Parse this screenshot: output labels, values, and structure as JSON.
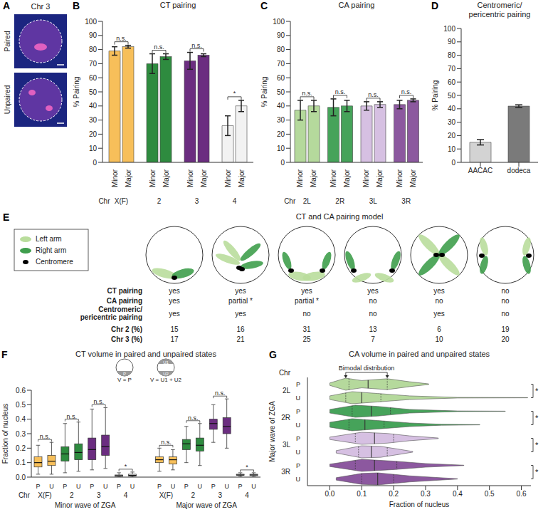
{
  "panel_A": {
    "panel": "A",
    "title": "Chr 3",
    "images": [
      "Paired",
      "Unpaired"
    ]
  },
  "panel_E": {
    "panel": "E",
    "title": "CT and CA pairing model",
    "legend": [
      {
        "label": "Left arm",
        "color": "#b9dd9c"
      },
      {
        "label": "Right arm",
        "color": "#3f9e4d"
      },
      {
        "label": "Centromere",
        "color": "#000000"
      }
    ],
    "rows": [
      {
        "label": "CT pairing",
        "values": [
          "yes",
          "yes",
          "yes",
          "yes",
          "yes",
          "no"
        ]
      },
      {
        "label": "CA pairing",
        "values": [
          "yes",
          "partial *",
          "partial *",
          "no",
          "no",
          "no"
        ]
      },
      {
        "label": "Centromeric/pericentric pairing",
        "values": [
          "yes",
          "yes",
          "no",
          "no",
          "yes",
          "no"
        ]
      },
      {
        "label": "Chr 2 (%)",
        "values": [
          15,
          16,
          31,
          13,
          6,
          19
        ]
      },
      {
        "label": "Chr 3 (%)",
        "values": [
          17,
          21,
          25,
          7,
          10,
          20
        ]
      }
    ]
  },
  "chart_data": [
    {
      "panel": "B",
      "type": "bar",
      "title": "CT pairing",
      "ylabel": "% Pairing",
      "group_label": "Chr",
      "categories": [
        "X(F)",
        "2",
        "3",
        "4"
      ],
      "series": [
        {
          "name": "Minor",
          "values": [
            79,
            70,
            72,
            26
          ],
          "errors": [
            3,
            7,
            6,
            7
          ],
          "colors": [
            "#f7bf5a",
            "#2e8b3f",
            "#6b2d80",
            "#f2f2f2"
          ]
        },
        {
          "name": "Major",
          "values": [
            82,
            75,
            76,
            40
          ],
          "errors": [
            1,
            2,
            1,
            4
          ],
          "colors": [
            "#f7bf5a",
            "#2e8b3f",
            "#6b2d80",
            "#f2f2f2"
          ]
        }
      ],
      "significance": [
        "n.s.",
        "n.s.",
        "n.s.",
        "*"
      ],
      "ylim": [
        0,
        100
      ],
      "yticks": [
        0,
        10,
        20,
        30,
        40,
        50,
        60,
        70,
        80,
        90,
        100
      ]
    },
    {
      "panel": "C",
      "type": "bar",
      "title": "CA pairing",
      "ylabel": "% Pairing",
      "group_label": "Chr",
      "categories": [
        "2L",
        "2R",
        "3L",
        "3R"
      ],
      "series": [
        {
          "name": "Minor",
          "values": [
            37,
            39,
            40,
            41
          ],
          "errors": [
            7,
            6,
            3,
            3
          ],
          "colors": [
            "#b5d99c",
            "#46a35a",
            "#d6c0e2",
            "#8c589f"
          ]
        },
        {
          "name": "Major",
          "values": [
            40,
            40,
            41,
            44
          ],
          "errors": [
            4,
            4,
            2,
            1
          ],
          "colors": [
            "#b5d99c",
            "#46a35a",
            "#d6c0e2",
            "#8c589f"
          ]
        }
      ],
      "significance": [
        "n.s.",
        "n.s.",
        "n.s.",
        "n.s."
      ],
      "ylim": [
        0,
        100
      ],
      "yticks": [
        0,
        10,
        20,
        30,
        40,
        50,
        60,
        70,
        80,
        90,
        100
      ]
    },
    {
      "panel": "D",
      "type": "bar",
      "title": "Centromeric/pericentric pairing",
      "ylabel": "% Pairing",
      "categories": [
        "AACAC",
        "dodeca"
      ],
      "values": [
        15,
        42
      ],
      "errors": [
        2,
        1
      ],
      "colors": [
        "#d3d3d3",
        "#7a7a7a"
      ],
      "ylim": [
        0,
        100
      ],
      "yticks": [
        0,
        10,
        20,
        30,
        40,
        50,
        60,
        70,
        80,
        90,
        100
      ]
    },
    {
      "panel": "F",
      "type": "box",
      "title": "CT volume in paired and unpaired states",
      "ylabel": "Fraction of nucleus",
      "group_label": "Chr",
      "inset": {
        "paired": {
          "formula": "V = P",
          "labels": [
            "P"
          ]
        },
        "unpaired": {
          "formula": "V = U1 + U2",
          "labels": [
            "U1",
            "U2"
          ]
        }
      },
      "categories": [
        "X(F)",
        "2",
        "3",
        "4"
      ],
      "states": [
        "P",
        "U"
      ],
      "colors": [
        "#f7bf5a",
        "#2e8b3f",
        "#6b2d80",
        "#e6e6e6"
      ],
      "waves": [
        {
          "name": "Minor wave of ZGA",
          "significance": [
            "n.s.",
            "n.s.",
            "n.s.",
            "*"
          ],
          "boxes": [
            [
              {
                "whislo": 0.02,
                "q1": 0.07,
                "med": 0.1,
                "q3": 0.14,
                "whishi": 0.22
              },
              {
                "whislo": 0.02,
                "q1": 0.08,
                "med": 0.11,
                "q3": 0.15,
                "whishi": 0.24
              }
            ],
            [
              {
                "whislo": 0.03,
                "q1": 0.11,
                "med": 0.16,
                "q3": 0.21,
                "whishi": 0.37
              },
              {
                "whislo": 0.04,
                "q1": 0.12,
                "med": 0.17,
                "q3": 0.23,
                "whishi": 0.38
              }
            ],
            [
              {
                "whislo": 0.05,
                "q1": 0.12,
                "med": 0.19,
                "q3": 0.27,
                "whishi": 0.47
              },
              {
                "whislo": 0.06,
                "q1": 0.15,
                "med": 0.21,
                "q3": 0.29,
                "whishi": 0.48
              }
            ],
            [
              {
                "whislo": 0,
                "q1": 0.005,
                "med": 0.01,
                "q3": 0.015,
                "whishi": 0.03
              },
              {
                "whislo": 0,
                "q1": 0.007,
                "med": 0.012,
                "q3": 0.02,
                "whishi": 0.035
              }
            ]
          ]
        },
        {
          "name": "Major wave of ZGA",
          "significance": [
            "n.s.",
            "n.s.",
            "n.s.",
            "*"
          ],
          "boxes": [
            [
              {
                "whislo": 0.04,
                "q1": 0.1,
                "med": 0.12,
                "q3": 0.14,
                "whishi": 0.2
              },
              {
                "whislo": 0.05,
                "q1": 0.09,
                "med": 0.12,
                "q3": 0.14,
                "whishi": 0.19
              }
            ],
            [
              {
                "whislo": 0.1,
                "q1": 0.19,
                "med": 0.23,
                "q3": 0.26,
                "whishi": 0.35
              },
              {
                "whislo": 0.08,
                "q1": 0.18,
                "med": 0.22,
                "q3": 0.27,
                "whishi": 0.37
              }
            ],
            [
              {
                "whislo": 0.24,
                "q1": 0.33,
                "med": 0.37,
                "q3": 0.4,
                "whishi": 0.5
              },
              {
                "whislo": 0.2,
                "q1": 0.3,
                "med": 0.35,
                "q3": 0.41,
                "whishi": 0.54
              }
            ],
            [
              {
                "whislo": 0.005,
                "q1": 0.012,
                "med": 0.015,
                "q3": 0.02,
                "whishi": 0.03
              },
              {
                "whislo": 0.005,
                "q1": 0.01,
                "med": 0.015,
                "q3": 0.02,
                "whishi": 0.03
              }
            ]
          ]
        }
      ],
      "ylim": [
        0,
        0.6
      ],
      "yticks": [
        {
          "value": 0,
          "label": "0.0"
        },
        0.1,
        0.2,
        0.3,
        0.4,
        0.5,
        0.6
      ]
    },
    {
      "panel": "G",
      "type": "violin",
      "orientation": "horizontal",
      "title": "CA volume in paired and unpaired states",
      "xlabel": "Fraction of nucleus",
      "ylabel": "Major wave of ZGA",
      "group_label": "Chr",
      "categories": [
        "2L",
        "2R",
        "3L",
        "3R"
      ],
      "states": [
        "P",
        "U"
      ],
      "colors": [
        "#b5d99c",
        "#46a35a",
        "#d6c0e2",
        "#8c589f"
      ],
      "significance": [
        "*",
        "*",
        "*",
        "*"
      ],
      "annotation": {
        "text": "Bimodal distribution",
        "x": [
          0.05,
          0.18
        ]
      },
      "violins": [
        [
          {
            "q1": 0.06,
            "median": 0.12,
            "q3": 0.18,
            "density": [
              [
                0,
                0.2
              ],
              [
                0.05,
                1
              ],
              [
                0.1,
                0.6
              ],
              [
                0.18,
                0.9
              ],
              [
                0.25,
                0.4
              ],
              [
                0.31,
                0.05
              ]
            ]
          },
          {
            "q1": 0.05,
            "median": 0.1,
            "q3": 0.16,
            "density": [
              [
                0,
                0.3
              ],
              [
                0.07,
                1
              ],
              [
                0.15,
                0.7
              ],
              [
                0.25,
                0.3
              ],
              [
                0.4,
                0.05
              ],
              [
                0.62,
                0.02
              ]
            ]
          }
        ],
        [
          {
            "q1": 0.07,
            "median": 0.13,
            "q3": 0.19,
            "density": [
              [
                0,
                0.3
              ],
              [
                0.08,
                1
              ],
              [
                0.15,
                0.8
              ],
              [
                0.25,
                0.3
              ],
              [
                0.4,
                0.05
              ],
              [
                0.55,
                0.02
              ]
            ]
          },
          {
            "q1": 0.06,
            "median": 0.11,
            "q3": 0.17,
            "density": [
              [
                0,
                0.4
              ],
              [
                0.07,
                1
              ],
              [
                0.15,
                0.7
              ],
              [
                0.25,
                0.3
              ],
              [
                0.35,
                0.08
              ],
              [
                0.47,
                0.02
              ]
            ]
          }
        ],
        [
          {
            "q1": 0.08,
            "median": 0.14,
            "q3": 0.2,
            "density": [
              [
                0,
                0.2
              ],
              [
                0.1,
                1
              ],
              [
                0.18,
                0.8
              ],
              [
                0.25,
                0.4
              ],
              [
                0.34,
                0.05
              ]
            ]
          },
          {
            "q1": 0.09,
            "median": 0.13,
            "q3": 0.18,
            "density": [
              [
                0.02,
                0.2
              ],
              [
                0.1,
                1
              ],
              [
                0.16,
                0.9
              ],
              [
                0.22,
                0.4
              ],
              [
                0.26,
                0.05
              ]
            ]
          }
        ],
        [
          {
            "q1": 0.08,
            "median": 0.14,
            "q3": 0.21,
            "density": [
              [
                0,
                0.2
              ],
              [
                0.1,
                1
              ],
              [
                0.2,
                0.7
              ],
              [
                0.3,
                0.3
              ],
              [
                0.42,
                0.03
              ]
            ]
          },
          {
            "q1": 0.1,
            "median": 0.15,
            "q3": 0.2,
            "density": [
              [
                0.02,
                0.2
              ],
              [
                0.1,
                0.9
              ],
              [
                0.15,
                1
              ],
              [
                0.25,
                0.5
              ],
              [
                0.4,
                0.03
              ]
            ]
          }
        ]
      ],
      "xlim": [
        -0.07,
        0.63
      ],
      "xticks": [
        {
          "value": 0,
          "label": "0.0"
        },
        0.1,
        0.2,
        0.3,
        0.4,
        0.5,
        0.6
      ]
    }
  ]
}
